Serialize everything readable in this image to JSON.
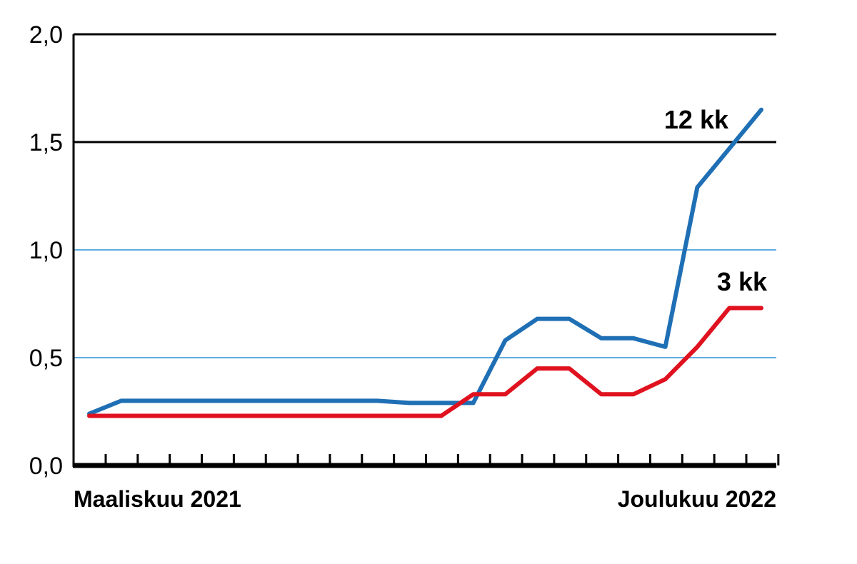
{
  "chart_data": {
    "type": "line",
    "x": [
      "2021-03",
      "2021-04",
      "2021-05",
      "2021-06",
      "2021-07",
      "2021-08",
      "2021-09",
      "2021-10",
      "2021-11",
      "2021-12",
      "2022-01",
      "2022-02",
      "2022-03",
      "2022-04",
      "2022-05",
      "2022-06",
      "2022-07",
      "2022-08",
      "2022-09",
      "2022-10",
      "2022-11",
      "2022-12"
    ],
    "x_tick_labels": [
      "Maaliskuu 2021",
      "Joulukuu 2022"
    ],
    "ylim": [
      0,
      2
    ],
    "y_ticks": [
      "0,0",
      "0,5",
      "1,0",
      "1,5",
      "2,0"
    ],
    "y_tick_values": [
      0,
      0.5,
      1.0,
      1.5,
      2.0
    ],
    "grid": true,
    "series": [
      {
        "name": "12 kk",
        "color": "#1f6fb5",
        "values": [
          0.24,
          0.3,
          0.3,
          0.3,
          0.3,
          0.3,
          0.3,
          0.3,
          0.3,
          0.3,
          0.29,
          0.29,
          0.29,
          0.58,
          0.68,
          0.68,
          0.59,
          0.59,
          0.55,
          1.29,
          1.47,
          1.65
        ]
      },
      {
        "name": "3 kk",
        "color": "#e0121f",
        "values": [
          0.23,
          0.23,
          0.23,
          0.23,
          0.23,
          0.23,
          0.23,
          0.23,
          0.23,
          0.23,
          0.23,
          0.23,
          0.33,
          0.33,
          0.45,
          0.45,
          0.33,
          0.33,
          0.4,
          0.55,
          0.73,
          0.73
        ]
      }
    ],
    "grid_colors": {
      "major": "#000000",
      "minor": "#2a8fd6"
    }
  }
}
